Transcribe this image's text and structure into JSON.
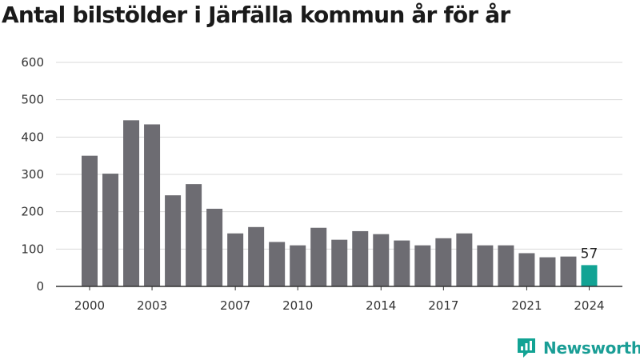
{
  "title": "Antal bilstölder i Järfälla kommun år för år",
  "brand": {
    "name": "Newsworthy",
    "icon": "newsworthy-logo-icon"
  },
  "colors": {
    "bar": "#6d6c72",
    "highlight": "#12a394",
    "grid": "#d9d9d9",
    "axis": "#333333"
  },
  "chart_data": {
    "type": "bar",
    "title": "Antal bilstölder i Järfälla kommun år för år",
    "categories": [
      "2000",
      "2001",
      "2002",
      "2003",
      "2004",
      "2005",
      "2006",
      "2007",
      "2008",
      "2009",
      "2010",
      "2011",
      "2012",
      "2013",
      "2014",
      "2015",
      "2016",
      "2017",
      "2018",
      "2019",
      "2020",
      "2021",
      "2022",
      "2023",
      "2024"
    ],
    "values": [
      350,
      302,
      445,
      434,
      244,
      274,
      208,
      142,
      159,
      119,
      110,
      157,
      125,
      148,
      140,
      123,
      110,
      129,
      142,
      110,
      110,
      89,
      78,
      80,
      57
    ],
    "xticks": [
      "2000",
      "2003",
      "2007",
      "2010",
      "2014",
      "2017",
      "2021",
      "2024"
    ],
    "yticks": [
      "0",
      "100",
      "200",
      "300",
      "400",
      "500",
      "600"
    ],
    "ylim": [
      0,
      600
    ],
    "highlight_category": "2024",
    "data_labels": [
      {
        "category": "2024",
        "text": "57"
      }
    ],
    "grid": true,
    "legend": "none",
    "xlabel": "",
    "ylabel": ""
  }
}
